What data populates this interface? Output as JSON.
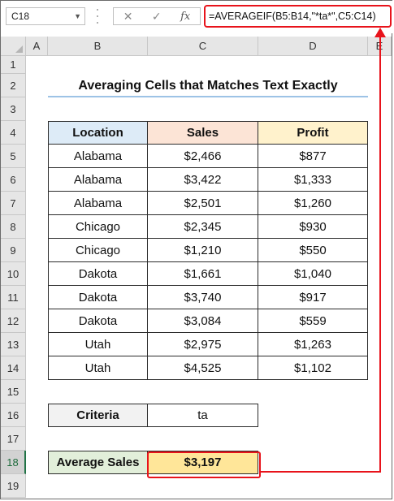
{
  "formula_bar": {
    "name_box": "C18",
    "cancel_symbol": "✕",
    "enter_symbol": "✓",
    "fx_label": "fx",
    "formula": "=AVERAGEIF(B5:B14,\"*ta*\",C5:C14)"
  },
  "columns": [
    "A",
    "B",
    "C",
    "D",
    "E"
  ],
  "rows": [
    "1",
    "2",
    "3",
    "4",
    "5",
    "6",
    "7",
    "8",
    "9",
    "10",
    "11",
    "12",
    "13",
    "14",
    "15",
    "16",
    "17",
    "18",
    "19"
  ],
  "selected_row": "18",
  "title": "Averaging Cells that Matches Text Exactly",
  "table": {
    "headers": [
      "Location",
      "Sales",
      "Profit"
    ],
    "rows": [
      [
        "Alabama",
        "$2,466",
        "$877"
      ],
      [
        "Alabama",
        "$3,422",
        "$1,333"
      ],
      [
        "Alabama",
        "$2,501",
        "$1,260"
      ],
      [
        "Chicago",
        "$2,345",
        "$930"
      ],
      [
        "Chicago",
        "$1,210",
        "$550"
      ],
      [
        "Dakota",
        "$1,661",
        "$1,040"
      ],
      [
        "Dakota",
        "$3,740",
        "$917"
      ],
      [
        "Dakota",
        "$3,084",
        "$559"
      ],
      [
        "Utah",
        "$2,975",
        "$1,263"
      ],
      [
        "Utah",
        "$4,525",
        "$1,102"
      ]
    ]
  },
  "criteria": {
    "label": "Criteria",
    "value": "ta"
  },
  "result": {
    "label": "Average Sales",
    "value": "$3,197"
  },
  "colors": {
    "header_location": "#ddebf7",
    "header_sales": "#fce4d6",
    "header_profit": "#fff2cc",
    "label_bg": "#f2f2f2",
    "result_label_bg": "#e2efda",
    "result_value_bg": "#ffe699",
    "highlight": "#e8131b"
  }
}
